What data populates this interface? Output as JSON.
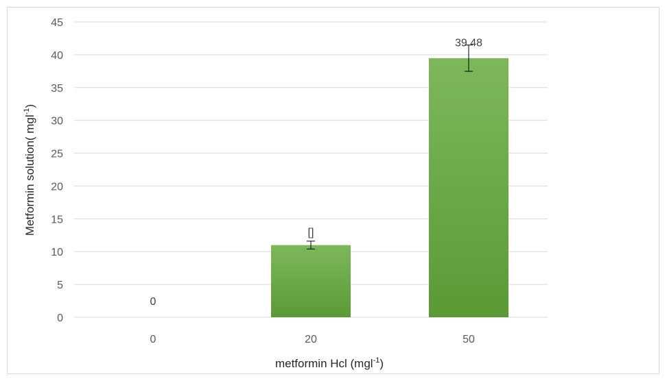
{
  "chart_data": {
    "type": "bar",
    "categories": [
      "0",
      "20",
      "50"
    ],
    "values": [
      0,
      11.0,
      39.48
    ],
    "error_bars": [
      0,
      0.6,
      2.0
    ],
    "data_labels": [
      "0",
      "[]",
      "39.48"
    ],
    "xlabel": "metformin Hcl (mgl",
    "xlabel_sup": "-1",
    "xlabel_suffix": ")",
    "ylabel": "Metformin solution( mgl",
    "ylabel_sup": "-1",
    "ylabel_suffix": ")",
    "ylim": [
      0,
      45
    ],
    "yticks": [
      "0",
      "5",
      "10",
      "15",
      "20",
      "25",
      "30",
      "35",
      "40",
      "45"
    ],
    "grid": true,
    "bar_color_top": "#7cb85a",
    "bar_color_bottom": "#5a9a35",
    "error_color": "#000000",
    "gridline_color": "#d9d9d9"
  }
}
